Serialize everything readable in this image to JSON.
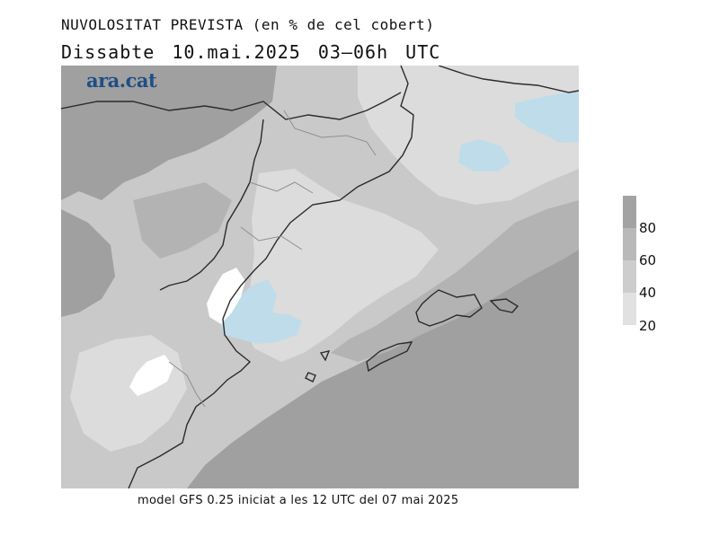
{
  "header": {
    "title": "NUVOLOSITAT PREVISTA (en % de cel cobert)",
    "subtitle": "Dissabte   10.mai.2025 03–06h UTC"
  },
  "map": {
    "brand": "ara.cat"
  },
  "legend": {
    "labels": [
      "80",
      "60",
      "40",
      "20"
    ],
    "colors": [
      "#a3a3a3",
      "#b9b9b9",
      "#cdcdcd",
      "#e1e1e1"
    ]
  },
  "palette": {
    "cover_20_40": "#dcdcdc",
    "cover_40_60": "#c9c9c9",
    "cover_60_80": "#b3b3b3",
    "cover_80_100": "#a0a0a0",
    "clear_low": "#bfdcea",
    "clear_white": "#ffffff"
  },
  "footer": {
    "text": "model GFS 0.25 iniciat a les 12 UTC del 07 mai 2025"
  }
}
